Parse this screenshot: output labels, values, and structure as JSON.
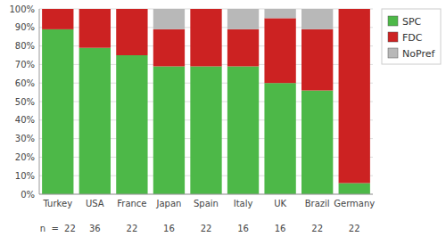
{
  "chart_data": {
    "type": "bar",
    "stacked": true,
    "categories": [
      "Turkey",
      "USA",
      "France",
      "Japan",
      "Spain",
      "Italy",
      "UK",
      "Brazil",
      "Germany"
    ],
    "series": [
      {
        "name": "SPC",
        "color": "#4db848",
        "values": [
          89,
          79,
          75,
          69,
          69,
          69,
          60,
          56,
          6
        ]
      },
      {
        "name": "FDC",
        "color": "#cc2222",
        "values": [
          11,
          21,
          25,
          20,
          31,
          20,
          35,
          33,
          94
        ]
      },
      {
        "name": "NoPref",
        "color": "#b8b8b8",
        "values": [
          0,
          0,
          0,
          11,
          0,
          11,
          5,
          11,
          0
        ]
      }
    ],
    "ylim": [
      0,
      100
    ],
    "yticks": [
      {
        "value": 0,
        "label": "0%"
      },
      {
        "value": 10,
        "label": "10%"
      },
      {
        "value": 20,
        "label": "20%"
      },
      {
        "value": 30,
        "label": "30%"
      },
      {
        "value": 40,
        "label": "40%"
      },
      {
        "value": 50,
        "label": "50%"
      },
      {
        "value": 60,
        "label": "60%"
      },
      {
        "value": 70,
        "label": "70%"
      },
      {
        "value": 80,
        "label": "80%"
      },
      {
        "value": 90,
        "label": "90%"
      },
      {
        "value": 100,
        "label": "100%"
      }
    ],
    "annotations": [
      "n  =  22",
      "36",
      "22",
      "16",
      "22",
      "16",
      "16",
      "22",
      "22"
    ],
    "grid": true,
    "legend": "right"
  }
}
